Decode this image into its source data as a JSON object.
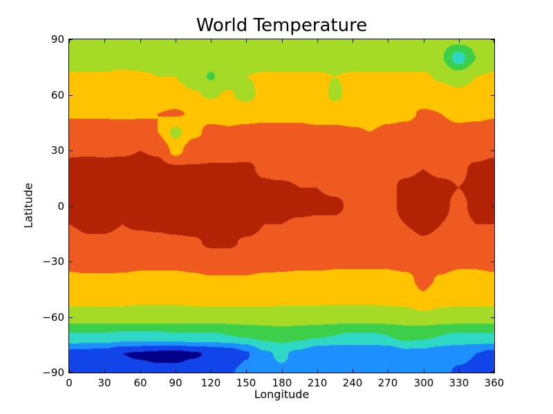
{
  "figure": {
    "background": "#ffffff"
  },
  "chart_data": {
    "type": "contour",
    "title": "World Temperature",
    "xlabel": "Longitude",
    "ylabel": "Latitude",
    "xlim": [
      0,
      360
    ],
    "ylim": [
      -90,
      90
    ],
    "xtick_values": [
      0,
      30,
      60,
      90,
      120,
      150,
      180,
      210,
      240,
      270,
      300,
      330,
      360
    ],
    "xtick_labels": [
      "0",
      "30",
      "60",
      "90",
      "120",
      "150",
      "180",
      "210",
      "240",
      "270",
      "300",
      "330",
      "360"
    ],
    "ytick_values": [
      -90,
      -60,
      -30,
      0,
      30,
      60,
      90
    ],
    "ytick_labels": [
      "−90",
      "−60",
      "−30",
      "0",
      "30",
      "60",
      "90"
    ],
    "grid_on": false,
    "legend": "none",
    "levels": [
      -45,
      -35,
      -25,
      -15,
      -5,
      5,
      15,
      25
    ],
    "colors": [
      "#000089",
      "#1245e9",
      "#1e8fff",
      "#2fd8c4",
      "#3ecf4a",
      "#a5da27",
      "#ffc300",
      "#ee5a20",
      "#b22306"
    ],
    "color_meaning_cold_to_hot": [
      "navy",
      "blue",
      "azure",
      "cyan",
      "green",
      "yellow-green",
      "gold",
      "orange-red",
      "dark-red"
    ],
    "lon": [
      0,
      15,
      30,
      45,
      60,
      75,
      90,
      105,
      120,
      135,
      150,
      165,
      180,
      195,
      210,
      225,
      240,
      255,
      270,
      285,
      300,
      315,
      330,
      345,
      360
    ],
    "lat": [
      90,
      80,
      70,
      60,
      50,
      40,
      30,
      20,
      10,
      0,
      -10,
      -20,
      -30,
      -40,
      -50,
      -60,
      -70,
      -80,
      -90
    ],
    "values": [
      [
        -2,
        -2,
        -2,
        -2,
        -2,
        -2,
        -2,
        -2,
        -2,
        -2,
        -2,
        -2,
        -2,
        -2,
        -2,
        -2,
        -2,
        -2,
        -2,
        -2,
        -2,
        -2,
        -2,
        -2,
        -2
      ],
      [
        0,
        0,
        0,
        1,
        1,
        1,
        1,
        1,
        0,
        0,
        0,
        0,
        0,
        0,
        0,
        0,
        0,
        0,
        0,
        0,
        0,
        -4,
        -20,
        -5,
        0
      ],
      [
        6,
        6,
        6,
        7,
        6,
        5,
        5,
        1,
        -6,
        1,
        5,
        6,
        6,
        6,
        6,
        5,
        6,
        6,
        6,
        6,
        6,
        4,
        0,
        5,
        6
      ],
      [
        10,
        10,
        10,
        10,
        9,
        9,
        9,
        6,
        4,
        6,
        2,
        8,
        9,
        9,
        10,
        3,
        8,
        9,
        10,
        10,
        10,
        9,
        8,
        9,
        10
      ],
      [
        14,
        14,
        14,
        14,
        14,
        15,
        16,
        14,
        12,
        12,
        12,
        12,
        12,
        12,
        11,
        11,
        11,
        10,
        12,
        13,
        16,
        15,
        13,
        13,
        14
      ],
      [
        19,
        19,
        19,
        18,
        19,
        15,
        2,
        13,
        17,
        16,
        17,
        18,
        18,
        18,
        17,
        17,
        16,
        15,
        17,
        18,
        19,
        18,
        17,
        18,
        19
      ],
      [
        24,
        24,
        24,
        24,
        25,
        24,
        12,
        20,
        22,
        22,
        23,
        23,
        23,
        23,
        22,
        22,
        21,
        21,
        21,
        22,
        23,
        23,
        22,
        23,
        24
      ],
      [
        27,
        28,
        27,
        28,
        28,
        28,
        27,
        26,
        26,
        26,
        26,
        24,
        23,
        23,
        23,
        23,
        23,
        24,
        24,
        24,
        25,
        24,
        24,
        26,
        27
      ],
      [
        27,
        27,
        28,
        27,
        27,
        28,
        28,
        28,
        29,
        29,
        28,
        26,
        26,
        25,
        25,
        24,
        24,
        23,
        24,
        26,
        27,
        26,
        25,
        26,
        27
      ],
      [
        26,
        27,
        27,
        26,
        27,
        28,
        28,
        29,
        29,
        29,
        29,
        27,
        27,
        27,
        26,
        26,
        24,
        23,
        24,
        26,
        28,
        26,
        24,
        26,
        26
      ],
      [
        25,
        26,
        26,
        25,
        26,
        27,
        28,
        28,
        28,
        28,
        28,
        25,
        25,
        24,
        24,
        24,
        23,
        23,
        24,
        25,
        27,
        25,
        24,
        25,
        25
      ],
      [
        22,
        24,
        24,
        23,
        22,
        22,
        23,
        24,
        26,
        26,
        24,
        23,
        22,
        22,
        22,
        21,
        21,
        21,
        21,
        22,
        24,
        23,
        21,
        22,
        22
      ],
      [
        18,
        20,
        20,
        19,
        18,
        18,
        18,
        19,
        21,
        21,
        20,
        19,
        18,
        18,
        18,
        17,
        17,
        17,
        17,
        18,
        20,
        19,
        17,
        17,
        18
      ],
      [
        13,
        13,
        13,
        13,
        12,
        12,
        12,
        13,
        14,
        14,
        14,
        13,
        13,
        12,
        12,
        12,
        12,
        12,
        12,
        13,
        17,
        14,
        12,
        12,
        13
      ],
      [
        8,
        8,
        8,
        8,
        7,
        7,
        7,
        8,
        8,
        8,
        8,
        8,
        7,
        7,
        7,
        7,
        7,
        7,
        8,
        9,
        14,
        9,
        8,
        8,
        8
      ],
      [
        0,
        0,
        0,
        0,
        0,
        0,
        0,
        0,
        0,
        0,
        1,
        1,
        1,
        1,
        1,
        0,
        0,
        0,
        0,
        0,
        2,
        1,
        0,
        0,
        0
      ],
      [
        -16,
        -16,
        -16,
        -17,
        -17,
        -17,
        -16,
        -16,
        -16,
        -15,
        -14,
        -12,
        -10,
        -12,
        -14,
        -15,
        -16,
        -16,
        -15,
        -11,
        -13,
        -15,
        -16,
        -16,
        -16
      ],
      [
        -38,
        -39,
        -40,
        -45,
        -46,
        -47,
        -48,
        -46,
        -44,
        -42,
        -36,
        -26,
        -24,
        -27,
        -32,
        -33,
        -33,
        -33,
        -32,
        -28,
        -28,
        -31,
        -33,
        -35,
        -38
      ],
      [
        -36,
        -38,
        -40,
        -41,
        -42,
        -43,
        -42,
        -40,
        -38,
        -36,
        -32,
        -28,
        -26,
        -28,
        -30,
        -31,
        -32,
        -32,
        -31,
        -29,
        -30,
        -33,
        -36,
        -37,
        -36
      ]
    ]
  }
}
